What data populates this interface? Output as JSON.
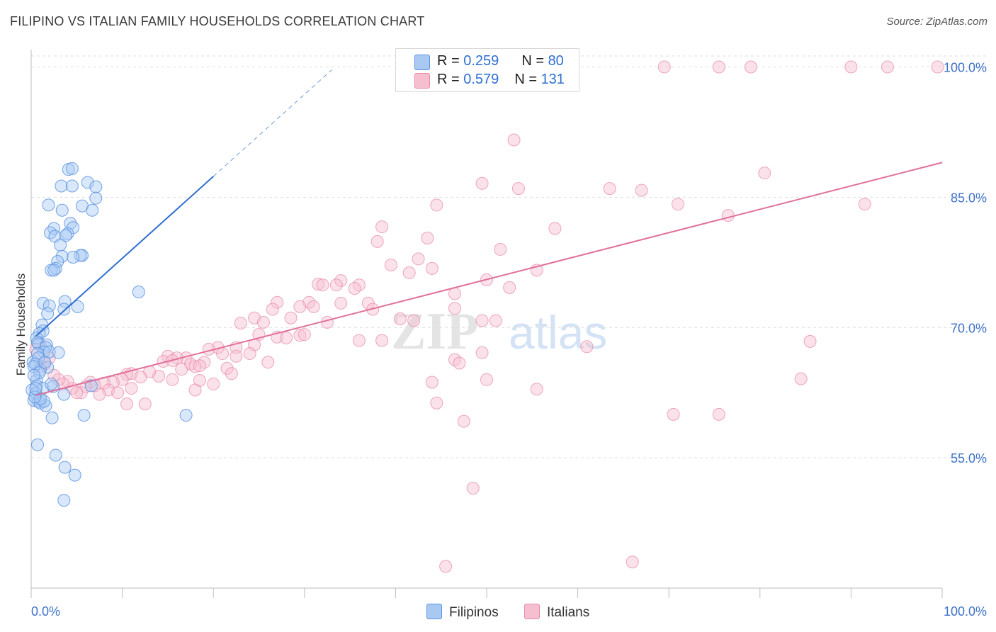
{
  "title": "FILIPINO VS ITALIAN FAMILY HOUSEHOLDS CORRELATION CHART",
  "source": "Source: ZipAtlas.com",
  "watermark": {
    "zip": "ZIP",
    "atlas": "atlas"
  },
  "colors": {
    "filipino": "#5b93e0",
    "filipino_fill": "#a9c9f3",
    "filipino_line": "#2f6fd1",
    "italian": "#e88aa8",
    "italian_fill": "#f6bfd0",
    "italian_line": "#e0709a",
    "axis_text": "#3f72c9",
    "grid": "#dedede"
  },
  "legend_top": [
    {
      "r_label": "R = ",
      "r_value": "0.259",
      "n_label": "N = ",
      "n_value": "80"
    },
    {
      "r_label": "R = ",
      "r_value": "0.579",
      "n_label": "N = ",
      "n_value": "131"
    }
  ],
  "legend_bottom": [
    "Filipinos",
    "Italians"
  ],
  "chart_data": {
    "type": "scatter",
    "title": "FILIPINO VS ITALIAN FAMILY HOUSEHOLDS CORRELATION CHART",
    "xlabel": "",
    "ylabel": "Family Households",
    "xlim": [
      0,
      100
    ],
    "ylim": [
      40,
      102
    ],
    "x_tick_labels": [
      "0.0%",
      "100.0%"
    ],
    "y_ticks": [
      55,
      70,
      85,
      100
    ],
    "y_tick_labels": [
      "55.0%",
      "70.0%",
      "85.0%",
      "100.0%"
    ],
    "series": [
      {
        "name": "Filipinos",
        "r": 0.259,
        "n": 80,
        "trend": {
          "x0": 0.5,
          "y0": 69.0,
          "x1": 20.0,
          "y1": 87.4,
          "dash_x1": 33.0
        },
        "points": [
          [
            4.1,
            88.2
          ],
          [
            4.5,
            88.3
          ],
          [
            6.2,
            86.7
          ],
          [
            3.3,
            86.3
          ],
          [
            4.5,
            86.3
          ],
          [
            7.1,
            86.2
          ],
          [
            7.1,
            84.9
          ],
          [
            1.9,
            84.1
          ],
          [
            5.6,
            84.0
          ],
          [
            6.7,
            83.5
          ],
          [
            3.4,
            83.5
          ],
          [
            4.3,
            82.0
          ],
          [
            4.6,
            81.5
          ],
          [
            2.5,
            81.4
          ],
          [
            2.1,
            80.9
          ],
          [
            2.6,
            80.5
          ],
          [
            4.0,
            80.8
          ],
          [
            3.8,
            80.6
          ],
          [
            3.2,
            79.5
          ],
          [
            5.6,
            78.3
          ],
          [
            5.4,
            78.3
          ],
          [
            3.4,
            78.2
          ],
          [
            4.6,
            78.1
          ],
          [
            2.9,
            77.6
          ],
          [
            2.7,
            76.8
          ],
          [
            2.2,
            76.6
          ],
          [
            2.5,
            76.6
          ],
          [
            11.8,
            74.1
          ],
          [
            3.7,
            73.0
          ],
          [
            1.3,
            72.8
          ],
          [
            2.0,
            72.5
          ],
          [
            5.1,
            72.4
          ],
          [
            3.6,
            72.1
          ],
          [
            1.8,
            71.6
          ],
          [
            1.2,
            70.3
          ],
          [
            1.3,
            69.6
          ],
          [
            0.9,
            69.3
          ],
          [
            0.6,
            68.8
          ],
          [
            0.7,
            68.3
          ],
          [
            0.8,
            68.1
          ],
          [
            1.7,
            68.0
          ],
          [
            1.6,
            67.7
          ],
          [
            1.4,
            67.2
          ],
          [
            0.7,
            67.0
          ],
          [
            2.0,
            67.2
          ],
          [
            3.0,
            67.1
          ],
          [
            0.2,
            66.0
          ],
          [
            0.8,
            66.5
          ],
          [
            0.5,
            65.8
          ],
          [
            1.8,
            65.4
          ],
          [
            1.0,
            65.1
          ],
          [
            0.3,
            65.5
          ],
          [
            0.6,
            63.9
          ],
          [
            0.6,
            63.3
          ],
          [
            1.3,
            63.0
          ],
          [
            2.4,
            63.2
          ],
          [
            6.6,
            63.3
          ],
          [
            0.1,
            62.8
          ],
          [
            0.5,
            62.4
          ],
          [
            3.6,
            62.3
          ],
          [
            0.3,
            61.6
          ],
          [
            0.8,
            61.5
          ],
          [
            1.0,
            61.3
          ],
          [
            1.6,
            61.0
          ],
          [
            1.4,
            61.5
          ],
          [
            5.8,
            59.9
          ],
          [
            17.0,
            59.9
          ],
          [
            2.3,
            59.6
          ],
          [
            0.7,
            56.5
          ],
          [
            2.7,
            55.3
          ],
          [
            3.7,
            53.9
          ],
          [
            4.8,
            53.0
          ],
          [
            3.6,
            50.1
          ],
          [
            1.0,
            61.8
          ],
          [
            0.4,
            62.0
          ],
          [
            0.9,
            64.8
          ],
          [
            1.5,
            66.0
          ],
          [
            2.2,
            63.5
          ],
          [
            0.5,
            63.0
          ],
          [
            0.3,
            64.5
          ]
        ]
      },
      {
        "name": "Italians",
        "r": 0.579,
        "n": 131,
        "trend": {
          "x0": 0.5,
          "y0": 62.2,
          "x1": 100,
          "y1": 89.0
        },
        "points": [
          [
            58.5,
            100
          ],
          [
            59.0,
            100
          ],
          [
            69.5,
            100
          ],
          [
            75.5,
            100
          ],
          [
            79.0,
            100
          ],
          [
            90.0,
            100
          ],
          [
            94.0,
            100
          ],
          [
            99.5,
            100
          ],
          [
            53.0,
            91.6
          ],
          [
            80.5,
            87.8
          ],
          [
            49.5,
            86.6
          ],
          [
            53.5,
            86.0
          ],
          [
            63.5,
            86.0
          ],
          [
            67.0,
            85.8
          ],
          [
            44.5,
            84.1
          ],
          [
            71.0,
            84.2
          ],
          [
            91.5,
            84.2
          ],
          [
            76.5,
            82.9
          ],
          [
            38.5,
            81.6
          ],
          [
            57.5,
            81.4
          ],
          [
            43.5,
            80.3
          ],
          [
            38.0,
            79.9
          ],
          [
            51.5,
            79.0
          ],
          [
            42.5,
            77.9
          ],
          [
            39.5,
            77.2
          ],
          [
            44.0,
            76.8
          ],
          [
            55.5,
            76.6
          ],
          [
            41.5,
            76.3
          ],
          [
            34.0,
            75.4
          ],
          [
            50.0,
            75.5
          ],
          [
            31.5,
            75.0
          ],
          [
            36.0,
            74.9
          ],
          [
            32.0,
            74.9
          ],
          [
            33.5,
            74.9
          ],
          [
            35.5,
            74.5
          ],
          [
            52.5,
            74.6
          ],
          [
            46.5,
            73.9
          ],
          [
            27.0,
            72.9
          ],
          [
            30.5,
            72.9
          ],
          [
            34.0,
            72.8
          ],
          [
            37.0,
            72.8
          ],
          [
            29.5,
            72.4
          ],
          [
            31.0,
            72.4
          ],
          [
            26.5,
            72.1
          ],
          [
            37.5,
            72.1
          ],
          [
            46.5,
            72.2
          ],
          [
            24.5,
            71.1
          ],
          [
            28.5,
            71.1
          ],
          [
            40.5,
            71.0
          ],
          [
            51.0,
            70.8
          ],
          [
            49.5,
            70.8
          ],
          [
            23.0,
            70.5
          ],
          [
            25.5,
            70.6
          ],
          [
            32.5,
            70.6
          ],
          [
            29.5,
            69.1
          ],
          [
            27.0,
            68.9
          ],
          [
            28.0,
            68.8
          ],
          [
            30.0,
            69.2
          ],
          [
            25.0,
            69.2
          ],
          [
            36.0,
            68.5
          ],
          [
            20.5,
            67.7
          ],
          [
            22.5,
            67.7
          ],
          [
            24.5,
            68.0
          ],
          [
            19.5,
            67.5
          ],
          [
            21.0,
            67.0
          ],
          [
            22.5,
            66.7
          ],
          [
            24.0,
            67.0
          ],
          [
            19.0,
            66.0
          ],
          [
            17.0,
            66.5
          ],
          [
            15.0,
            66.7
          ],
          [
            16.0,
            66.5
          ],
          [
            14.5,
            66.1
          ],
          [
            17.5,
            65.8
          ],
          [
            18.0,
            65.5
          ],
          [
            18.5,
            65.6
          ],
          [
            15.5,
            66.2
          ],
          [
            16.5,
            65.2
          ],
          [
            26.0,
            66.0
          ],
          [
            21.5,
            65.3
          ],
          [
            20.0,
            63.5
          ],
          [
            22.0,
            64.7
          ],
          [
            18.5,
            63.9
          ],
          [
            14.0,
            64.4
          ],
          [
            13.0,
            64.9
          ],
          [
            15.5,
            64.0
          ],
          [
            11.0,
            64.7
          ],
          [
            10.5,
            64.6
          ],
          [
            12.0,
            64.3
          ],
          [
            10.0,
            64.0
          ],
          [
            9.0,
            63.7
          ],
          [
            8.0,
            63.6
          ],
          [
            6.5,
            63.7
          ],
          [
            7.0,
            63.3
          ],
          [
            6.0,
            63.2
          ],
          [
            5.5,
            62.5
          ],
          [
            8.5,
            62.8
          ],
          [
            9.5,
            62.5
          ],
          [
            7.5,
            62.3
          ],
          [
            11.0,
            63.0
          ],
          [
            4.5,
            63.0
          ],
          [
            5.0,
            62.5
          ],
          [
            4.0,
            63.8
          ],
          [
            3.5,
            63.5
          ],
          [
            3.0,
            64.0
          ],
          [
            2.5,
            64.5
          ],
          [
            1.5,
            65.8
          ],
          [
            1.0,
            65.5
          ],
          [
            2.0,
            66.5
          ],
          [
            1.0,
            68.0
          ],
          [
            0.5,
            67.5
          ],
          [
            50.0,
            64.0
          ],
          [
            44.0,
            63.7
          ],
          [
            55.5,
            62.9
          ],
          [
            61.0,
            67.8
          ],
          [
            46.5,
            66.3
          ],
          [
            47.0,
            65.9
          ],
          [
            49.5,
            67.1
          ],
          [
            42.0,
            70.8
          ],
          [
            85.5,
            68.4
          ],
          [
            84.5,
            64.1
          ],
          [
            70.5,
            60.0
          ],
          [
            75.5,
            60.0
          ],
          [
            47.5,
            59.2
          ],
          [
            44.5,
            61.3
          ],
          [
            10.5,
            61.2
          ],
          [
            12.5,
            61.2
          ],
          [
            18.0,
            62.8
          ],
          [
            48.5,
            51.5
          ],
          [
            45.5,
            42.5
          ],
          [
            66.0,
            43.0
          ],
          [
            38.5,
            68.5
          ]
        ]
      }
    ]
  }
}
